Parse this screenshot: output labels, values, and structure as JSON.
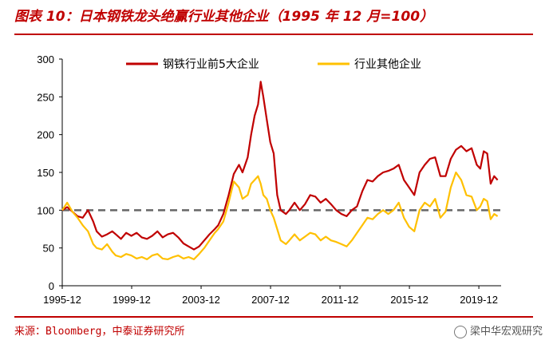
{
  "header": {
    "title": "图表 10：日本钢铁龙头绝赢行业其他企业（1995 年 12 月=100）"
  },
  "footer": {
    "source": "来源：Bloomberg，中泰证券研究所",
    "watermark": "梁中华宏观研究"
  },
  "colors": {
    "series_1": "#c00000",
    "series_2": "#ffc000",
    "reference": "#666666",
    "accent": "#c00000"
  },
  "chart_data": {
    "type": "line",
    "ylim": [
      0,
      300
    ],
    "yticks": [
      0,
      50,
      100,
      150,
      200,
      250,
      300
    ],
    "xlim": [
      1995.917,
      2021.2
    ],
    "xtick_labels": [
      "1995-12",
      "1999-12",
      "2003-12",
      "2007-12",
      "2011-12",
      "2015-12",
      "2019-12"
    ],
    "xtick_values": [
      1995.917,
      1999.917,
      2003.917,
      2007.917,
      2011.917,
      2015.917,
      2019.917
    ],
    "reference_line": 100,
    "legend_position": "top",
    "grid": false,
    "series": [
      {
        "name": "钢铁行业前5大企业",
        "points": [
          [
            1995.917,
            100
          ],
          [
            1996.2,
            104
          ],
          [
            1996.5,
            98
          ],
          [
            1996.8,
            92
          ],
          [
            1997.1,
            90
          ],
          [
            1997.4,
            100
          ],
          [
            1997.7,
            85
          ],
          [
            1997.9,
            72
          ],
          [
            1998.2,
            65
          ],
          [
            1998.5,
            68
          ],
          [
            1998.8,
            72
          ],
          [
            1999.0,
            68
          ],
          [
            1999.3,
            62
          ],
          [
            1999.6,
            70
          ],
          [
            1999.9,
            66
          ],
          [
            2000.2,
            70
          ],
          [
            2000.5,
            64
          ],
          [
            2000.8,
            62
          ],
          [
            2001.1,
            66
          ],
          [
            2001.4,
            72
          ],
          [
            2001.7,
            64
          ],
          [
            2002.0,
            68
          ],
          [
            2002.3,
            70
          ],
          [
            2002.6,
            64
          ],
          [
            2002.9,
            56
          ],
          [
            2003.2,
            52
          ],
          [
            2003.5,
            48
          ],
          [
            2003.8,
            52
          ],
          [
            2004.1,
            60
          ],
          [
            2004.4,
            68
          ],
          [
            2004.7,
            75
          ],
          [
            2004.9,
            80
          ],
          [
            2005.2,
            95
          ],
          [
            2005.5,
            120
          ],
          [
            2005.8,
            148
          ],
          [
            2006.1,
            160
          ],
          [
            2006.3,
            150
          ],
          [
            2006.6,
            170
          ],
          [
            2006.8,
            200
          ],
          [
            2007.0,
            225
          ],
          [
            2007.2,
            240
          ],
          [
            2007.35,
            270
          ],
          [
            2007.5,
            250
          ],
          [
            2007.7,
            220
          ],
          [
            2007.9,
            190
          ],
          [
            2008.1,
            175
          ],
          [
            2008.3,
            120
          ],
          [
            2008.5,
            100
          ],
          [
            2008.8,
            95
          ],
          [
            2009.0,
            100
          ],
          [
            2009.3,
            110
          ],
          [
            2009.6,
            100
          ],
          [
            2009.9,
            108
          ],
          [
            2010.2,
            120
          ],
          [
            2010.5,
            118
          ],
          [
            2010.8,
            110
          ],
          [
            2011.1,
            115
          ],
          [
            2011.4,
            108
          ],
          [
            2011.7,
            100
          ],
          [
            2012.0,
            95
          ],
          [
            2012.3,
            92
          ],
          [
            2012.6,
            100
          ],
          [
            2012.9,
            105
          ],
          [
            2013.2,
            125
          ],
          [
            2013.5,
            140
          ],
          [
            2013.8,
            138
          ],
          [
            2014.1,
            145
          ],
          [
            2014.4,
            150
          ],
          [
            2014.7,
            152
          ],
          [
            2015.0,
            155
          ],
          [
            2015.3,
            160
          ],
          [
            2015.6,
            140
          ],
          [
            2015.9,
            130
          ],
          [
            2016.2,
            120
          ],
          [
            2016.5,
            150
          ],
          [
            2016.8,
            160
          ],
          [
            2017.1,
            168
          ],
          [
            2017.4,
            170
          ],
          [
            2017.7,
            145
          ],
          [
            2018.0,
            145
          ],
          [
            2018.3,
            168
          ],
          [
            2018.6,
            180
          ],
          [
            2018.9,
            185
          ],
          [
            2019.2,
            178
          ],
          [
            2019.5,
            182
          ],
          [
            2019.8,
            160
          ],
          [
            2020.0,
            155
          ],
          [
            2020.2,
            178
          ],
          [
            2020.4,
            175
          ],
          [
            2020.6,
            135
          ],
          [
            2020.8,
            145
          ],
          [
            2021.0,
            140
          ]
        ]
      },
      {
        "name": "行业其他企业",
        "points": [
          [
            1995.917,
            100
          ],
          [
            1996.2,
            110
          ],
          [
            1996.5,
            98
          ],
          [
            1996.8,
            90
          ],
          [
            1997.1,
            80
          ],
          [
            1997.4,
            72
          ],
          [
            1997.7,
            55
          ],
          [
            1997.9,
            50
          ],
          [
            1998.2,
            48
          ],
          [
            1998.5,
            55
          ],
          [
            1998.8,
            45
          ],
          [
            1999.0,
            40
          ],
          [
            1999.3,
            38
          ],
          [
            1999.6,
            42
          ],
          [
            1999.9,
            40
          ],
          [
            2000.2,
            36
          ],
          [
            2000.5,
            38
          ],
          [
            2000.8,
            35
          ],
          [
            2001.1,
            40
          ],
          [
            2001.4,
            42
          ],
          [
            2001.7,
            36
          ],
          [
            2002.0,
            35
          ],
          [
            2002.3,
            38
          ],
          [
            2002.6,
            40
          ],
          [
            2002.9,
            36
          ],
          [
            2003.2,
            38
          ],
          [
            2003.5,
            35
          ],
          [
            2003.8,
            42
          ],
          [
            2004.1,
            50
          ],
          [
            2004.4,
            60
          ],
          [
            2004.7,
            70
          ],
          [
            2004.9,
            75
          ],
          [
            2005.2,
            85
          ],
          [
            2005.5,
            110
          ],
          [
            2005.8,
            138
          ],
          [
            2006.1,
            130
          ],
          [
            2006.3,
            115
          ],
          [
            2006.6,
            120
          ],
          [
            2006.8,
            135
          ],
          [
            2007.0,
            140
          ],
          [
            2007.2,
            145
          ],
          [
            2007.35,
            135
          ],
          [
            2007.5,
            120
          ],
          [
            2007.7,
            115
          ],
          [
            2007.9,
            100
          ],
          [
            2008.1,
            90
          ],
          [
            2008.3,
            75
          ],
          [
            2008.5,
            60
          ],
          [
            2008.8,
            55
          ],
          [
            2009.0,
            60
          ],
          [
            2009.3,
            68
          ],
          [
            2009.6,
            60
          ],
          [
            2009.9,
            65
          ],
          [
            2010.2,
            70
          ],
          [
            2010.5,
            68
          ],
          [
            2010.8,
            60
          ],
          [
            2011.1,
            65
          ],
          [
            2011.4,
            60
          ],
          [
            2011.7,
            58
          ],
          [
            2012.0,
            55
          ],
          [
            2012.3,
            52
          ],
          [
            2012.6,
            60
          ],
          [
            2012.9,
            70
          ],
          [
            2013.2,
            80
          ],
          [
            2013.5,
            90
          ],
          [
            2013.8,
            88
          ],
          [
            2014.1,
            95
          ],
          [
            2014.4,
            100
          ],
          [
            2014.7,
            95
          ],
          [
            2015.0,
            100
          ],
          [
            2015.3,
            110
          ],
          [
            2015.6,
            90
          ],
          [
            2015.9,
            78
          ],
          [
            2016.2,
            72
          ],
          [
            2016.5,
            100
          ],
          [
            2016.8,
            110
          ],
          [
            2017.1,
            105
          ],
          [
            2017.4,
            115
          ],
          [
            2017.7,
            90
          ],
          [
            2018.0,
            98
          ],
          [
            2018.3,
            130
          ],
          [
            2018.6,
            150
          ],
          [
            2018.9,
            140
          ],
          [
            2019.2,
            120
          ],
          [
            2019.5,
            118
          ],
          [
            2019.8,
            100
          ],
          [
            2020.0,
            105
          ],
          [
            2020.2,
            115
          ],
          [
            2020.4,
            112
          ],
          [
            2020.6,
            88
          ],
          [
            2020.8,
            95
          ],
          [
            2021.0,
            92
          ]
        ]
      }
    ]
  }
}
